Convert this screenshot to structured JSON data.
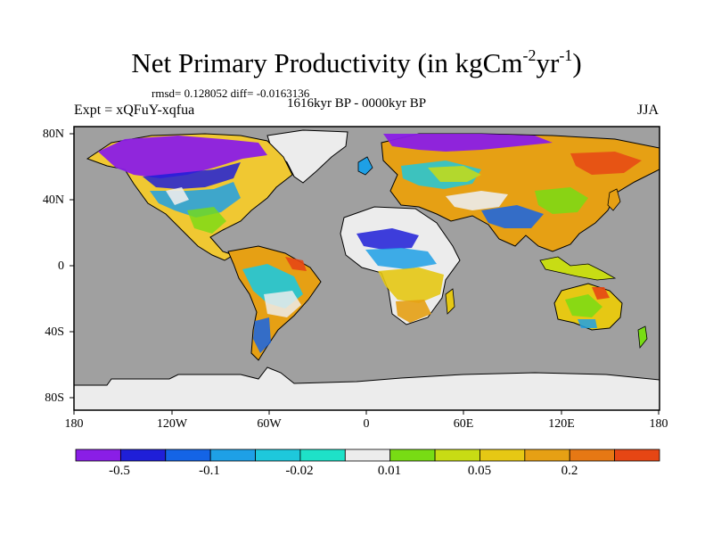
{
  "title": {
    "main": "Net Primary Productivity (in kgCm",
    "sup1": "-2",
    "mid": "yr",
    "sup2": "-1",
    "close": ")"
  },
  "stats_text": "rmsd= 0.128052 diff= -0.0163136",
  "period_text": "1616kyr BP - 0000kyr BP",
  "experiment_text": "Expt = xQFuY-xqfua",
  "season_text": "JJA",
  "latitude_labels": [
    "80N",
    "40N",
    "0",
    "40S",
    "80S"
  ],
  "longitude_labels": [
    "180",
    "120W",
    "60W",
    "0",
    "60E",
    "120E",
    "180"
  ],
  "colorbar": {
    "labels": [
      "-0.5",
      "-0.1",
      "-0.02",
      "0.01",
      "0.05",
      "0.2"
    ],
    "colors": [
      "#8a1ee6",
      "#1f1fd8",
      "#1464e6",
      "#1ea0e6",
      "#1ec8dc",
      "#1ee1c8",
      "#ececec",
      "#78dc14",
      "#c8dc14",
      "#e6c814",
      "#e6a014",
      "#e67814",
      "#e64614"
    ]
  },
  "colors": {
    "ocean": "#a0a0a0",
    "ice": "#ececec",
    "coast": "#000000"
  }
}
